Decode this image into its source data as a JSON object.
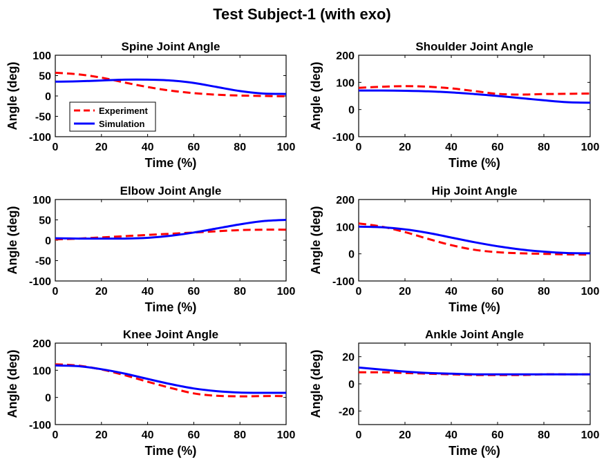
{
  "figure": {
    "title": "Test Subject-1 (with exo)"
  },
  "legend": {
    "placement": "inside-lower-left",
    "entries": [
      "Experiment",
      "Simulation"
    ]
  },
  "colors": {
    "experiment": "#ff0000",
    "simulation": "#0000ff",
    "axes": "#000000"
  },
  "chart_data": [
    {
      "type": "line",
      "title": "Spine Joint Angle",
      "xlabel": "Time (%)",
      "ylabel": "Angle (deg)",
      "xlim": [
        0,
        100
      ],
      "ylim": [
        -100,
        100
      ],
      "xticks": [
        0,
        20,
        40,
        60,
        80,
        100
      ],
      "yticks": [
        100,
        50,
        0,
        -50,
        -100
      ],
      "grid": false,
      "legend": [
        "Experiment",
        "Simulation"
      ],
      "x": [
        0,
        10,
        20,
        30,
        40,
        50,
        60,
        70,
        80,
        90,
        100
      ],
      "series": [
        {
          "name": "Experiment",
          "style": "dashed",
          "color": "#ff0000",
          "values": [
            57,
            53,
            45,
            33,
            22,
            13,
            7,
            3,
            1,
            0,
            -1
          ]
        },
        {
          "name": "Simulation",
          "style": "solid",
          "color": "#0000ff",
          "values": [
            35,
            36,
            38,
            40,
            40,
            38,
            32,
            22,
            12,
            6,
            5
          ]
        }
      ]
    },
    {
      "type": "line",
      "title": "Shoulder Joint Angle",
      "xlabel": "Time (%)",
      "ylabel": "Angle (deg)",
      "xlim": [
        0,
        100
      ],
      "ylim": [
        -100,
        200
      ],
      "xticks": [
        0,
        20,
        40,
        60,
        80,
        100
      ],
      "yticks": [
        200,
        100,
        0,
        -100
      ],
      "grid": false,
      "x": [
        0,
        10,
        20,
        30,
        40,
        50,
        60,
        70,
        80,
        90,
        100
      ],
      "series": [
        {
          "name": "Experiment",
          "style": "dashed",
          "color": "#ff0000",
          "values": [
            80,
            84,
            86,
            84,
            78,
            68,
            58,
            55,
            57,
            58,
            59
          ]
        },
        {
          "name": "Simulation",
          "style": "solid",
          "color": "#0000ff",
          "values": [
            70,
            70,
            69,
            67,
            63,
            57,
            50,
            42,
            34,
            27,
            25
          ]
        }
      ]
    },
    {
      "type": "line",
      "title": "Elbow Joint Angle",
      "xlabel": "Time (%)",
      "ylabel": "Angle (deg)",
      "xlim": [
        0,
        100
      ],
      "ylim": [
        -100,
        100
      ],
      "xticks": [
        0,
        20,
        40,
        60,
        80,
        100
      ],
      "yticks": [
        100,
        50,
        0,
        -50,
        -100
      ],
      "grid": false,
      "x": [
        0,
        10,
        20,
        30,
        40,
        50,
        60,
        70,
        80,
        90,
        100
      ],
      "series": [
        {
          "name": "Experiment",
          "style": "dashed",
          "color": "#ff0000",
          "values": [
            2,
            4,
            7,
            10,
            13,
            16,
            19,
            22,
            25,
            26,
            26
          ]
        },
        {
          "name": "Simulation",
          "style": "solid",
          "color": "#0000ff",
          "values": [
            5,
            4,
            4,
            4,
            6,
            11,
            19,
            29,
            39,
            47,
            50
          ]
        }
      ]
    },
    {
      "type": "line",
      "title": "Hip Joint Angle",
      "xlabel": "Time (%)",
      "ylabel": "Angle (deg)",
      "xlim": [
        0,
        100
      ],
      "ylim": [
        -100,
        200
      ],
      "xticks": [
        0,
        20,
        40,
        60,
        80,
        100
      ],
      "yticks": [
        200,
        100,
        0,
        -100
      ],
      "grid": false,
      "x": [
        0,
        10,
        20,
        30,
        40,
        50,
        60,
        70,
        80,
        90,
        100
      ],
      "series": [
        {
          "name": "Experiment",
          "style": "dashed",
          "color": "#ff0000",
          "values": [
            112,
            100,
            80,
            55,
            32,
            15,
            6,
            2,
            0,
            -2,
            -3
          ]
        },
        {
          "name": "Simulation",
          "style": "solid",
          "color": "#0000ff",
          "values": [
            100,
            98,
            90,
            77,
            60,
            43,
            28,
            16,
            8,
            3,
            2
          ]
        }
      ]
    },
    {
      "type": "line",
      "title": "Knee Joint Angle",
      "xlabel": "Time (%)",
      "ylabel": "Angle (deg)",
      "xlim": [
        0,
        100
      ],
      "ylim": [
        -100,
        200
      ],
      "xticks": [
        0,
        20,
        40,
        60,
        80,
        100
      ],
      "yticks": [
        200,
        100,
        0,
        -100
      ],
      "grid": false,
      "x": [
        0,
        10,
        20,
        30,
        40,
        50,
        60,
        70,
        80,
        90,
        100
      ],
      "series": [
        {
          "name": "Experiment",
          "style": "dashed",
          "color": "#ff0000",
          "values": [
            122,
            117,
            103,
            82,
            58,
            35,
            15,
            6,
            4,
            5,
            5
          ]
        },
        {
          "name": "Simulation",
          "style": "solid",
          "color": "#0000ff",
          "values": [
            118,
            115,
            104,
            88,
            68,
            49,
            33,
            23,
            18,
            17,
            17
          ]
        }
      ]
    },
    {
      "type": "line",
      "title": "Ankle Joint Angle",
      "xlabel": "Time (%)",
      "ylabel": "Angle (deg)",
      "xlim": [
        0,
        100
      ],
      "ylim": [
        -30,
        30
      ],
      "xticks": [
        0,
        20,
        40,
        60,
        80,
        100
      ],
      "yticks": [
        20,
        0,
        -20
      ],
      "grid": false,
      "x": [
        0,
        10,
        20,
        30,
        40,
        50,
        60,
        70,
        80,
        90,
        100
      ],
      "series": [
        {
          "name": "Experiment",
          "style": "dashed",
          "color": "#ff0000",
          "values": [
            8.5,
            8.5,
            8,
            7.5,
            7,
            6.5,
            6.5,
            6.5,
            7,
            7,
            7
          ]
        },
        {
          "name": "Simulation",
          "style": "solid",
          "color": "#0000ff",
          "values": [
            12,
            10.5,
            9,
            8,
            7.5,
            7,
            7,
            7,
            7,
            7,
            7
          ]
        }
      ]
    }
  ]
}
